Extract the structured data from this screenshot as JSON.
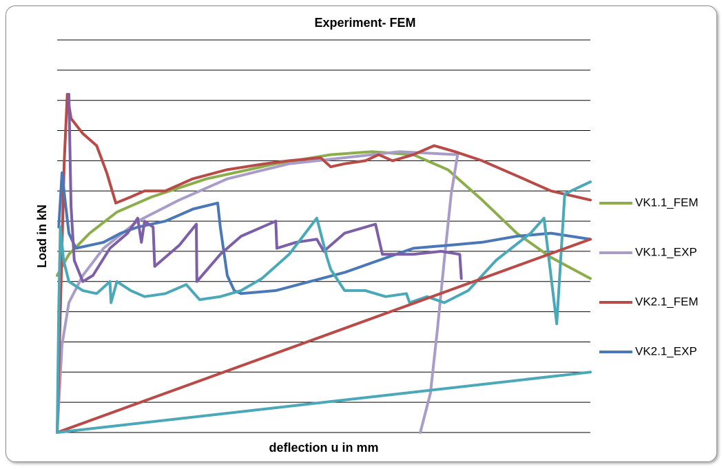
{
  "chart_data": {
    "type": "line",
    "title": "Experiment- FEM",
    "x_label": "deflection u in mm",
    "y_label": "Load in kN",
    "xlim": [
      0,
      100
    ],
    "ylim": [
      0,
      13
    ],
    "yticks": [
      0,
      1,
      2,
      3,
      4,
      5,
      6,
      7,
      8,
      9,
      10,
      11,
      12,
      13
    ],
    "tick_labels": false,
    "grid": true,
    "legend": "right",
    "series": [
      {
        "name": "VK1.1_FEM",
        "color": "#8cad4b",
        "x": [
          0,
          2.2,
          6.1,
          11.2,
          17.7,
          28.0,
          41.0,
          51.3,
          59.0,
          66.8,
          73.3,
          79.7,
          86.2,
          92.6,
          100
        ],
        "values": [
          5.2,
          5.9,
          6.6,
          7.3,
          7.8,
          8.4,
          8.9,
          9.2,
          9.3,
          9.2,
          8.7,
          7.7,
          6.6,
          5.8,
          5.1
        ]
      },
      {
        "name": "VK1.1_EXP",
        "color": "#aa9cc9",
        "x": [
          0,
          0.9,
          2.2,
          4.8,
          8.7,
          15.1,
          22.9,
          31.9,
          43.5,
          53.9,
          64.2,
          75.1,
          73.9,
          72.6,
          71.3,
          70.0,
          68.1
        ],
        "values": [
          0,
          2.9,
          4.3,
          5.2,
          6.1,
          7.0,
          7.7,
          8.4,
          8.9,
          9.1,
          9.3,
          9.2,
          7.9,
          5.7,
          3.4,
          1.3,
          0
        ]
      },
      {
        "name": "VK2.1_FEM",
        "color": "#b84b48",
        "x": [
          0,
          1.3,
          1.9,
          2.6,
          4.8,
          7.4,
          9.3,
          11.0,
          13.8,
          16.4,
          20.3,
          25.4,
          31.8,
          38.9,
          43.5,
          49.4,
          51.3,
          53.9,
          57.8,
          60.3,
          62.9,
          66.8,
          70.7,
          74.6,
          79.7,
          86.2,
          92.6,
          100
        ],
        "values": [
          0,
          8.9,
          11.2,
          10.4,
          9.9,
          9.5,
          8.6,
          7.6,
          7.8,
          8.0,
          8.0,
          8.4,
          8.7,
          8.9,
          9.0,
          9.1,
          8.8,
          8.9,
          9.0,
          9.2,
          9.0,
          9.2,
          9.5,
          9.3,
          9.0,
          8.5,
          8.0,
          7.7
        ]
      },
      {
        "name": "VK2.1_EXP",
        "color": "#4a78b6",
        "x": [
          0.3,
          0.9,
          1.6,
          2.2,
          3.5,
          6.1,
          8.7,
          11.9,
          15.1,
          20.3,
          25.5,
          30.1,
          30.6,
          31.9,
          33.2,
          34.5,
          41.0,
          47.4,
          53.9,
          60.3,
          66.8,
          73.3,
          79.7,
          86.2,
          92.6,
          100
        ],
        "values": [
          6.8,
          8.6,
          7.5,
          6.6,
          6.1,
          6.2,
          6.3,
          6.6,
          6.8,
          7.0,
          7.4,
          7.6,
          6.8,
          5.2,
          4.7,
          4.6,
          4.7,
          5.0,
          5.3,
          5.7,
          6.1,
          6.2,
          6.3,
          6.5,
          6.6,
          6.4
        ]
      },
      {
        "color": "#7c5fa6",
        "x": [
          2.2,
          2.6,
          3.2,
          4.8,
          6.7,
          9.9,
          13.2,
          15.1,
          15.8,
          16.4,
          18.0,
          18.3,
          22.9,
          26.1,
          26.2,
          30.6,
          34.5,
          41.0,
          41.2,
          44.8,
          48.7,
          50.0,
          53.9,
          57.8,
          59.7,
          61.0,
          66.8,
          72.0,
          75.5,
          75.8
        ],
        "values": [
          11.2,
          7.5,
          5.7,
          5.0,
          5.2,
          6.1,
          6.6,
          7.1,
          6.3,
          7.0,
          6.8,
          5.5,
          6.2,
          6.9,
          5.0,
          5.9,
          6.5,
          7.0,
          6.1,
          6.3,
          6.4,
          6.0,
          6.6,
          6.8,
          6.9,
          5.9,
          5.9,
          6.0,
          5.9,
          5.1
        ]
      },
      {
        "color": "#4ba8b8",
        "x": [
          0,
          0.3,
          0.6,
          1.2,
          2.2,
          4.8,
          7.4,
          9.9,
          10.1,
          11.2,
          13.8,
          16.4,
          20.3,
          24.2,
          26.7,
          30.6,
          34.5,
          38.4,
          43.5,
          46.1,
          48.7,
          50.6,
          51.3,
          53.9,
          57.8,
          61.6,
          65.5,
          66.1,
          69.4,
          72.6,
          77.1,
          82.3,
          88.8,
          91.3,
          93.7,
          95.2,
          100
        ],
        "values": [
          0,
          4.1,
          6.8,
          5.7,
          5.0,
          4.7,
          4.6,
          5.0,
          4.3,
          5.0,
          4.7,
          4.5,
          4.6,
          4.9,
          4.4,
          4.5,
          4.7,
          5.1,
          5.9,
          6.5,
          7.1,
          5.8,
          5.4,
          4.7,
          4.7,
          4.5,
          4.6,
          4.3,
          4.5,
          4.3,
          4.7,
          5.7,
          6.6,
          7.1,
          3.6,
          7.9,
          8.3
        ]
      },
      {
        "color": "#b84b48",
        "x": [
          0,
          100
        ],
        "values": [
          0,
          6.4
        ]
      },
      {
        "color": "#4ba8b8",
        "x": [
          0,
          100
        ],
        "values": [
          0,
          2.0
        ]
      }
    ]
  }
}
